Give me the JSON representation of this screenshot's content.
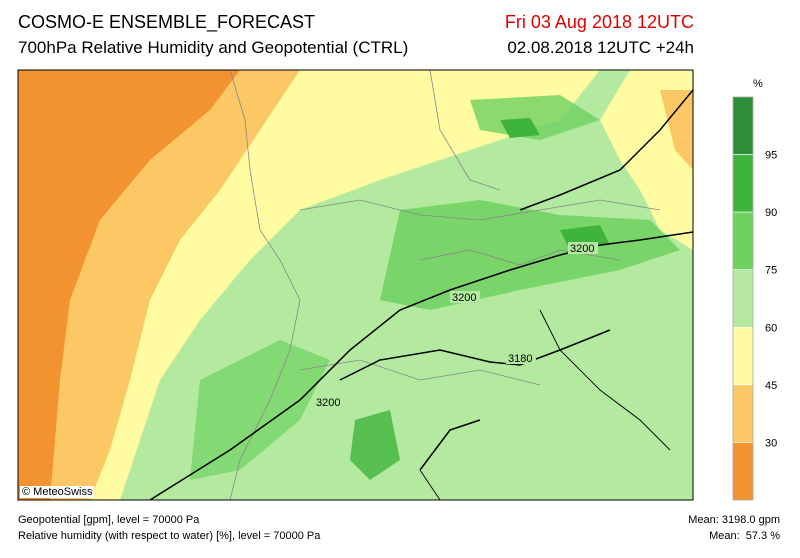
{
  "header": {
    "title": "COSMO-E ENSEMBLE_FORECAST",
    "subtitle": "700hPa Relative Humidity and Geopotential (CTRL)",
    "valid_time": "Fri 03 Aug 2018 12UTC",
    "run_time": "02.08.2018 12UTC +24h"
  },
  "legend": {
    "unit": "%",
    "colors": [
      "#2f8f36",
      "#3fb43c",
      "#6fd160",
      "#b3eaa0",
      "#fffba0",
      "#fcc865",
      "#f29330"
    ],
    "ticks": [
      "95",
      "90",
      "75",
      "60",
      "45",
      "30"
    ]
  },
  "map": {
    "contour_labels": [
      "3200",
      "3200",
      "3180",
      "3200"
    ],
    "copyright": "© MeteoSwiss"
  },
  "footer": {
    "geopotential": "Geopotential [gpm], level = 70000 Pa",
    "humidity": "Relative humidity (with respect to water) [%], level = 70000 Pa",
    "mean_geopotential": "Mean: 3198.0 gpm",
    "mean_humidity": "Mean:  57.3 %"
  }
}
